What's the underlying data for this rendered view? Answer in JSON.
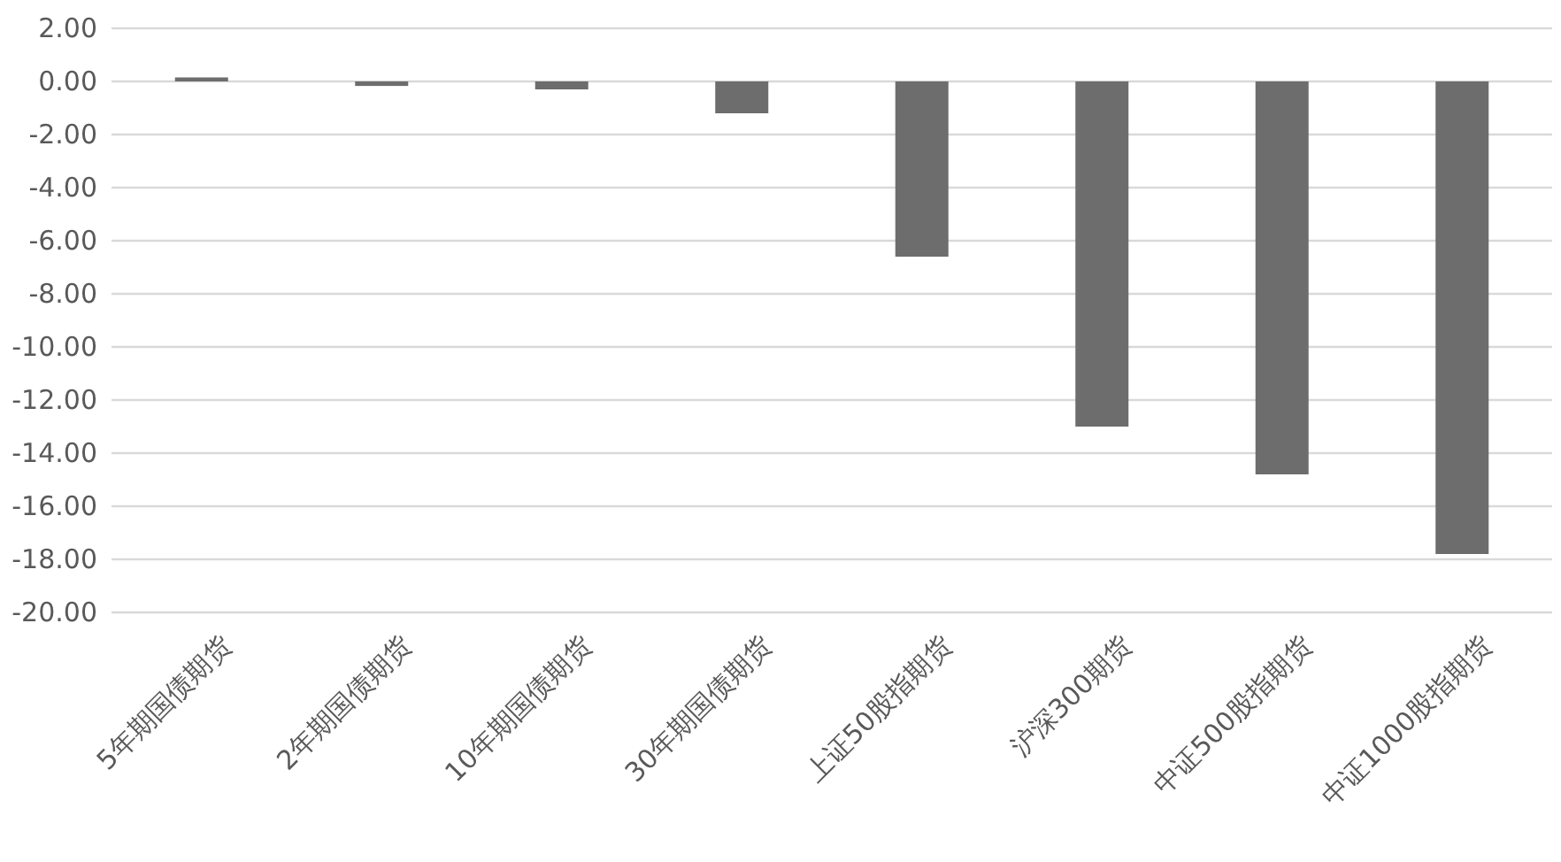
{
  "chart_data": {
    "type": "bar",
    "categories": [
      "5年期国债期货",
      "2年期国债期货",
      "10年期国债期货",
      "30年期国债期货",
      "上证50股指期货",
      "沪深300期货",
      "中证500股指期货",
      "中证1000股指期货"
    ],
    "values": [
      0.15,
      -0.17,
      -0.3,
      -1.2,
      -6.6,
      -13.0,
      -14.8,
      -17.8
    ],
    "color": "#6d6d6d",
    "ylim": [
      -20,
      2
    ],
    "yticks": [
      {
        "value": 2,
        "label": "2.00"
      },
      {
        "value": 0,
        "label": "0.00"
      },
      {
        "value": -2,
        "label": "-2.00"
      },
      {
        "value": -4,
        "label": "-4.00"
      },
      {
        "value": -6,
        "label": "-6.00"
      },
      {
        "value": -8,
        "label": "-8.00"
      },
      {
        "value": -10,
        "label": "-10.00"
      },
      {
        "value": -12,
        "label": "-12.00"
      },
      {
        "value": -14,
        "label": "-14.00"
      },
      {
        "value": -16,
        "label": "-16.00"
      },
      {
        "value": -18,
        "label": "-18.00"
      },
      {
        "value": -20,
        "label": "-20.00"
      }
    ],
    "grid": "y"
  }
}
